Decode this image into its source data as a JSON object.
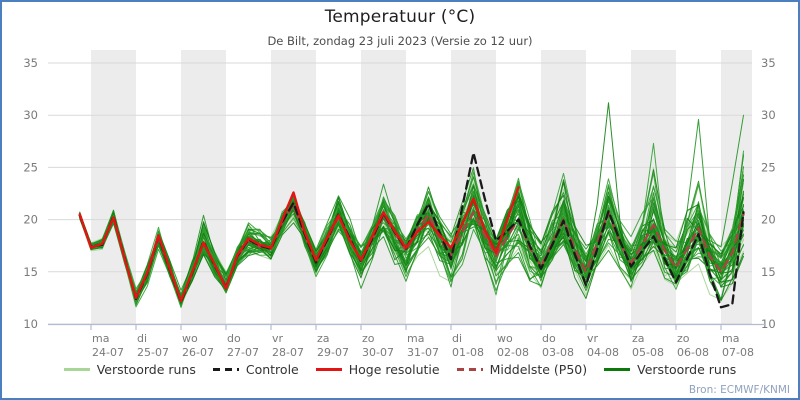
{
  "header": {
    "title": "Temperatuur (°C)",
    "subtitle": "De Bilt, zondag 23 juli 2023 (Versie zo 12 uur)"
  },
  "source": {
    "label": "Bron: ECMWF/KNMI"
  },
  "colors": {
    "frame_border": "#4b7fc0",
    "day_band": "#ececec",
    "grid": "#d9d9d9",
    "axis": "#b3bcd2",
    "tick_label": "#7a7a7a",
    "ensemble_light": "#a8d598",
    "ensemble_dark": [
      "#2f9e2f",
      "#1d8f1d",
      "#0f7c0f"
    ],
    "control": "#1a1a1a",
    "hires": "#e41414",
    "p50": "#a94442"
  },
  "legend": [
    {
      "label": "Verstoorde runs",
      "color": "#a8d598",
      "style": "solid"
    },
    {
      "label": "Controle",
      "color": "#1a1a1a",
      "style": "dashed"
    },
    {
      "label": "Hoge resolutie",
      "color": "#e41414",
      "style": "solid"
    },
    {
      "label": "Middelste (P50)",
      "color": "#a94442",
      "style": "dashed"
    },
    {
      "label": "Verstoorde runs",
      "color": "#0b7a0b",
      "style": "solid"
    }
  ],
  "chart_data": {
    "type": "line",
    "title": "Temperatuur (°C)",
    "subtitle": "De Bilt, zondag 23 juli 2023 (Versie zo 12 uur)",
    "ylim": [
      10,
      35
    ],
    "yticks": [
      10,
      15,
      20,
      25,
      30,
      35
    ],
    "grid": "horizontal-only",
    "legend_position": "bottom",
    "x_days": [
      {
        "wd": "ma",
        "date": "24-07"
      },
      {
        "wd": "di",
        "date": "25-07"
      },
      {
        "wd": "wo",
        "date": "26-07"
      },
      {
        "wd": "do",
        "date": "27-07"
      },
      {
        "wd": "vr",
        "date": "28-07"
      },
      {
        "wd": "za",
        "date": "29-07"
      },
      {
        "wd": "zo",
        "date": "30-07"
      },
      {
        "wd": "ma",
        "date": "31-07"
      },
      {
        "wd": "di",
        "date": "01-08"
      },
      {
        "wd": "wo",
        "date": "02-08"
      },
      {
        "wd": "do",
        "date": "03-08"
      },
      {
        "wd": "vr",
        "date": "04-08"
      },
      {
        "wd": "za",
        "date": "05-08"
      },
      {
        "wd": "zo",
        "date": "06-08"
      },
      {
        "wd": "ma",
        "date": "07-08"
      }
    ],
    "time": {
      "start_hours": 6,
      "step_hours": 6,
      "end_hours": 360
    },
    "series": [
      {
        "name": "Controle",
        "style": "dashed",
        "color": "#1a1a1a",
        "values": [
          20.4,
          17.4,
          17.6,
          20.3,
          16.3,
          12.4,
          14.8,
          18.4,
          15.2,
          12.1,
          14.9,
          17.9,
          15.6,
          13.5,
          16.5,
          18.1,
          17.5,
          17.2,
          19.8,
          21.6,
          18.6,
          15.9,
          18.1,
          20.5,
          18.2,
          16.0,
          18.2,
          20.6,
          18.8,
          17.2,
          19.5,
          21.5,
          18.7,
          16.2,
          21.2,
          26.4,
          22.0,
          18.0,
          18.9,
          20.0,
          17.5,
          15.3,
          17.6,
          19.9,
          16.7,
          13.7,
          17.2,
          20.8,
          18.0,
          15.5,
          17.0,
          18.4,
          16.2,
          14.0,
          16.3,
          18.6,
          14.8,
          11.6,
          11.9,
          20.7
        ]
      },
      {
        "name": "Hoge resolutie",
        "style": "solid",
        "color": "#e41414",
        "ends_hours": 240,
        "values": [
          20.5,
          17.3,
          17.7,
          20.2,
          16.2,
          12.5,
          14.9,
          18.5,
          15.3,
          12.2,
          15.0,
          17.8,
          15.7,
          13.4,
          16.6,
          18.2,
          17.6,
          17.3,
          20.0,
          22.6,
          18.8,
          16.1,
          18.3,
          20.4,
          18.0,
          16.1,
          18.4,
          20.7,
          18.9,
          17.3,
          18.8,
          19.8,
          18.5,
          17.3,
          19.6,
          22.0,
          19.0,
          16.8,
          20.0,
          23.1
        ]
      },
      {
        "name": "Middelste (P50)",
        "style": "dashed",
        "color": "#a94442",
        "values": [
          20.4,
          17.4,
          17.6,
          20.2,
          16.3,
          12.5,
          14.8,
          18.3,
          15.2,
          12.2,
          14.9,
          17.8,
          15.6,
          13.6,
          16.4,
          18.0,
          17.4,
          17.2,
          19.7,
          21.4,
          18.5,
          16.0,
          18.0,
          20.3,
          18.1,
          16.1,
          18.1,
          20.4,
          18.7,
          17.0,
          19.0,
          20.5,
          18.2,
          16.6,
          18.8,
          20.7,
          18.5,
          16.5,
          18.4,
          20.0,
          17.3,
          15.5,
          17.8,
          20.0,
          17.2,
          15.0,
          17.8,
          20.7,
          17.8,
          15.8,
          17.6,
          19.5,
          17.0,
          15.4,
          17.2,
          19.2,
          16.5,
          15.0,
          16.8,
          20.5
        ]
      },
      {
        "name": "Verstoorde runs (band min)",
        "style": "envelope",
        "color": "#1d8f1d",
        "values": [
          20.0,
          16.9,
          17.0,
          19.2,
          15.3,
          11.4,
          13.6,
          17.2,
          14.0,
          11.0,
          13.5,
          16.2,
          14.2,
          12.4,
          15.0,
          16.0,
          15.8,
          15.5,
          17.8,
          19.3,
          16.5,
          14.0,
          16.0,
          18.3,
          15.8,
          12.6,
          15.5,
          17.3,
          15.0,
          13.4,
          15.8,
          16.8,
          14.5,
          12.1,
          15.0,
          17.0,
          14.5,
          11.2,
          14.5,
          15.5,
          13.5,
          12.8,
          14.8,
          16.0,
          13.5,
          12.0,
          14.0,
          16.3,
          14.0,
          12.8,
          14.5,
          15.3,
          13.0,
          12.4,
          14.0,
          15.0,
          12.5,
          11.4,
          12.5,
          15.5
        ]
      },
      {
        "name": "Verstoorde runs (band max)",
        "style": "envelope",
        "color": "#1d8f1d",
        "values": [
          20.8,
          18.0,
          18.3,
          21.1,
          17.3,
          13.6,
          16.0,
          19.6,
          16.5,
          13.5,
          16.5,
          21.0,
          17.5,
          15.5,
          18.0,
          20.3,
          19.5,
          18.6,
          21.5,
          23.2,
          20.5,
          17.5,
          20.0,
          23.3,
          20.5,
          18.2,
          20.5,
          24.5,
          21.0,
          19.3,
          21.5,
          24.8,
          21.0,
          19.3,
          22.5,
          26.5,
          21.5,
          19.0,
          22.0,
          25.3,
          20.5,
          18.5,
          21.5,
          26.3,
          20.5,
          18.0,
          21.0,
          25.0,
          20.5,
          18.5,
          21.0,
          27.3,
          20.0,
          19.0,
          22.0,
          26.0,
          20.0,
          18.3,
          20.0,
          30.0
        ]
      }
    ],
    "ensemble": {
      "count": 50,
      "light_count": 12,
      "outliers": [
        {
          "member": 47,
          "points": {
            "282": 21.5,
            "288": 31.2,
            "294": 20.0
          }
        },
        {
          "member": 46,
          "points": {
            "330": 21.0,
            "336": 29.6,
            "342": 18.0,
            "354": 23.5,
            "360": 30.0
          }
        },
        {
          "member": 45,
          "points": {
            "306": 19.5,
            "312": 27.3,
            "318": 17.5
          }
        }
      ]
    }
  }
}
